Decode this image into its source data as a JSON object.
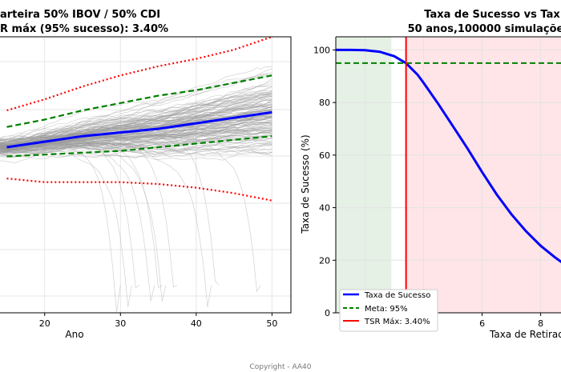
{
  "copyright": "Copyright - AA40",
  "chart_data": [
    {
      "type": "line",
      "title_line1": "arteira 50% IBOV / 50% CDI",
      "title_line2": "R máx (95% sucesso): 3.40%",
      "xlabel": "Ano",
      "ylabel": "",
      "xlim": [
        14,
        52.5
      ],
      "x_ticks": [
        20,
        30,
        40,
        50
      ],
      "ylim": [
        -0.5,
        1.0
      ],
      "grid": true,
      "simulation_paths": 150,
      "series": [
        {
          "role": "median",
          "color": "#0000ff",
          "x": [
            15,
            20,
            25,
            30,
            35,
            40,
            45,
            50
          ],
          "y": [
            0.4,
            0.43,
            0.46,
            0.48,
            0.5,
            0.53,
            0.56,
            0.59
          ]
        },
        {
          "role": "upper_band",
          "color": "#008000",
          "x": [
            15,
            20,
            25,
            30,
            35,
            40,
            45,
            50
          ],
          "y": [
            0.51,
            0.55,
            0.6,
            0.64,
            0.68,
            0.71,
            0.75,
            0.79
          ]
        },
        {
          "role": "lower_band",
          "color": "#008000",
          "x": [
            15,
            20,
            25,
            30,
            35,
            40,
            45,
            50
          ],
          "y": [
            0.35,
            0.36,
            0.37,
            0.38,
            0.4,
            0.42,
            0.44,
            0.46
          ]
        },
        {
          "role": "upper_extreme",
          "color": "#ff0000",
          "x": [
            15,
            20,
            25,
            30,
            35,
            40,
            45,
            50
          ],
          "y": [
            0.6,
            0.66,
            0.73,
            0.79,
            0.84,
            0.88,
            0.93,
            1.0
          ]
        },
        {
          "role": "lower_extreme",
          "color": "#ff0000",
          "x": [
            15,
            20,
            25,
            30,
            35,
            40,
            45,
            50
          ],
          "y": [
            0.23,
            0.21,
            0.21,
            0.21,
            0.2,
            0.18,
            0.15,
            0.11
          ]
        }
      ],
      "path_colors": {
        "paths": "#9a9a9a"
      }
    },
    {
      "type": "line",
      "title_line1": "Taxa de Sucesso vs Tax",
      "title_line2": "50 anos,100000 simulaçõe",
      "xlabel": "Taxa de Retirad",
      "ylabel": "Taxa de Sucesso (%)",
      "xlim": [
        1.0,
        8.75
      ],
      "ylim": [
        0,
        105
      ],
      "x_ticks": [
        2,
        4,
        6,
        8
      ],
      "y_ticks": [
        0,
        20,
        40,
        60,
        80,
        100
      ],
      "grid": true,
      "legend_position": "bottom-left",
      "series": [
        {
          "name": "Taxa de Sucesso",
          "color": "#0000ff",
          "x": [
            1.0,
            1.5,
            2.0,
            2.5,
            3.0,
            3.4,
            3.8,
            4.0,
            4.5,
            5.0,
            5.5,
            6.0,
            6.5,
            7.0,
            7.5,
            8.0,
            8.5,
            8.75
          ],
          "y": [
            100,
            100,
            99.9,
            99.3,
            97.6,
            95.0,
            90.5,
            87.5,
            79.5,
            71.0,
            62.5,
            53.5,
            45.0,
            37.5,
            31.0,
            25.5,
            21.0,
            19.0
          ]
        },
        {
          "name": "Meta: 95%",
          "color": "#008000",
          "value": 95
        },
        {
          "name": "TSR Máx: 3.40%",
          "color": "#ff0000",
          "value": 3.4
        }
      ],
      "shaded_regions": [
        {
          "from": 1.0,
          "to": 2.9,
          "color": "#e5f1e5"
        },
        {
          "from": 3.4,
          "to": 8.75,
          "color": "#ffe5e8"
        }
      ]
    }
  ]
}
